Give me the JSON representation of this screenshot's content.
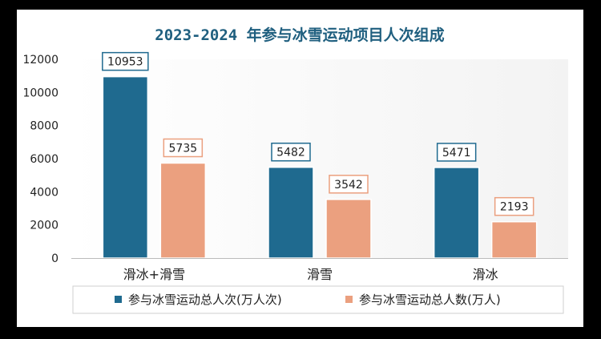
{
  "chart_data": {
    "type": "bar",
    "title": "2023-2024 年参与冰雪运动项目人次组成",
    "categories": [
      "滑冰+滑雪",
      "滑雪",
      "滑冰"
    ],
    "series": [
      {
        "name": "参与冰雪运动总人次(万人次)",
        "values": [
          10953,
          5482,
          5471
        ],
        "color": "#1f6a8f"
      },
      {
        "name": "参与冰雪运动总人数(万人)",
        "values": [
          5735,
          3542,
          2193
        ],
        "color": "#eba07f"
      }
    ],
    "ylim": [
      0,
      12000
    ],
    "yticks": [
      0,
      2000,
      4000,
      6000,
      8000,
      10000,
      12000
    ],
    "xlabel": "",
    "ylabel": "",
    "grid": false,
    "legend": "bottom"
  }
}
